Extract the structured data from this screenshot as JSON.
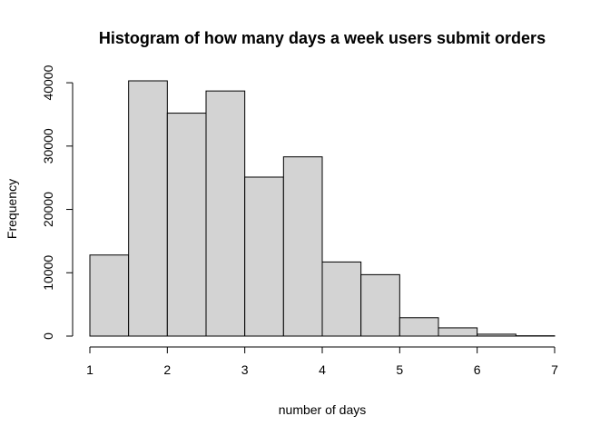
{
  "chart_data": {
    "type": "bar",
    "title": "Histogram of how many days a week users submit orders",
    "xlabel": "number of days",
    "ylabel": "Frequency",
    "bins": [
      {
        "start": 1.0,
        "end": 1.5,
        "count": 12800
      },
      {
        "start": 1.5,
        "end": 2.0,
        "count": 40300
      },
      {
        "start": 2.0,
        "end": 2.5,
        "count": 35200
      },
      {
        "start": 2.5,
        "end": 3.0,
        "count": 38700
      },
      {
        "start": 3.0,
        "end": 3.5,
        "count": 25100
      },
      {
        "start": 3.5,
        "end": 4.0,
        "count": 28300
      },
      {
        "start": 4.0,
        "end": 4.5,
        "count": 11700
      },
      {
        "start": 4.5,
        "end": 5.0,
        "count": 9700
      },
      {
        "start": 5.0,
        "end": 5.5,
        "count": 2900
      },
      {
        "start": 5.5,
        "end": 6.0,
        "count": 1300
      },
      {
        "start": 6.0,
        "end": 6.5,
        "count": 300
      },
      {
        "start": 6.5,
        "end": 7.0,
        "count": 50
      }
    ],
    "xlim": [
      1,
      7
    ],
    "ylim": [
      0,
      40300
    ],
    "x_ticks": [
      "1",
      "2",
      "3",
      "4",
      "5",
      "6",
      "7"
    ],
    "y_ticks": [
      "0",
      "10000",
      "20000",
      "30000",
      "40000"
    ],
    "bar_color": "#d3d3d3",
    "border_color": "#000000",
    "grid": false
  }
}
